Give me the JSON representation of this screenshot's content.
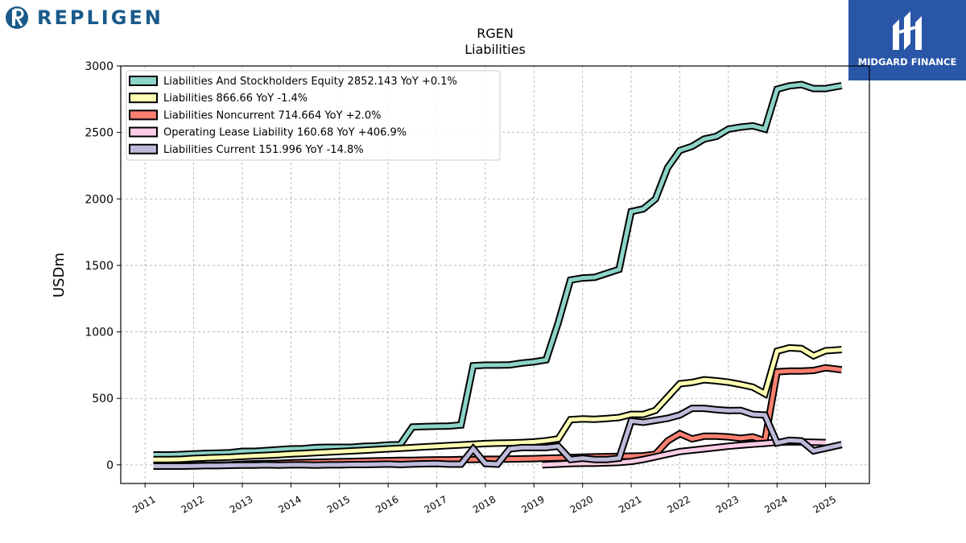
{
  "brand": {
    "left_logo_text": "REPLIGEN",
    "right_logo_text": "MIDGARD FINANCE"
  },
  "colors": {
    "equity": "#8dd3c7",
    "liabilities": "#ffffb3",
    "noncurrent": "#fb8072",
    "lease": "#fccde5",
    "current": "#bebada",
    "right_logo_bg": "#2a56a8",
    "left_logo": "#1a5a8a"
  },
  "chart_data": {
    "type": "line",
    "title": "RGEN",
    "subtitle": "Liabilities",
    "ylabel": "USDm",
    "xlabel": "",
    "xlim": [
      2010.5,
      2025.9
    ],
    "ylim": [
      -140,
      3000
    ],
    "yticks": [
      0,
      500,
      1000,
      1500,
      2000,
      2500,
      3000
    ],
    "xticks": [
      2011,
      2012,
      2013,
      2014,
      2015,
      2016,
      2017,
      2018,
      2019,
      2020,
      2021,
      2022,
      2023,
      2024,
      2025
    ],
    "grid": true,
    "legend_position": "top-left",
    "series": [
      {
        "name": "Liabilities And Stockholders Equity",
        "legend": "Liabilities And Stockholders Equity  2852.143 YoY +0.1%",
        "color": "#8dd3c7",
        "points": [
          [
            2011.17,
            75
          ],
          [
            2011.5,
            75
          ],
          [
            2011.75,
            78
          ],
          [
            2012.0,
            82
          ],
          [
            2012.25,
            86
          ],
          [
            2012.5,
            88
          ],
          [
            2012.75,
            92
          ],
          [
            2013.0,
            102
          ],
          [
            2013.25,
            102
          ],
          [
            2013.5,
            108
          ],
          [
            2013.75,
            114
          ],
          [
            2014.0,
            120
          ],
          [
            2014.25,
            122
          ],
          [
            2014.5,
            130
          ],
          [
            2014.75,
            132
          ],
          [
            2015.0,
            132
          ],
          [
            2015.25,
            132
          ],
          [
            2015.5,
            140
          ],
          [
            2015.75,
            142
          ],
          [
            2016.0,
            150
          ],
          [
            2016.25,
            152
          ],
          [
            2016.5,
            285
          ],
          [
            2016.75,
            288
          ],
          [
            2017.0,
            290
          ],
          [
            2017.25,
            292
          ],
          [
            2017.5,
            300
          ],
          [
            2017.75,
            745
          ],
          [
            2018.0,
            750
          ],
          [
            2018.25,
            750
          ],
          [
            2018.5,
            752
          ],
          [
            2018.75,
            765
          ],
          [
            2019.0,
            775
          ],
          [
            2019.25,
            790
          ],
          [
            2019.5,
            1070
          ],
          [
            2019.75,
            1390
          ],
          [
            2020.0,
            1405
          ],
          [
            2020.25,
            1410
          ],
          [
            2020.5,
            1440
          ],
          [
            2020.75,
            1470
          ],
          [
            2021.0,
            1905
          ],
          [
            2021.25,
            1925
          ],
          [
            2021.5,
            2000
          ],
          [
            2021.75,
            2235
          ],
          [
            2022.0,
            2365
          ],
          [
            2022.25,
            2395
          ],
          [
            2022.5,
            2450
          ],
          [
            2022.75,
            2470
          ],
          [
            2023.0,
            2525
          ],
          [
            2023.25,
            2540
          ],
          [
            2023.5,
            2550
          ],
          [
            2023.75,
            2525
          ],
          [
            2024.0,
            2825
          ],
          [
            2024.25,
            2850
          ],
          [
            2024.5,
            2860
          ],
          [
            2024.75,
            2830
          ],
          [
            2025.0,
            2830
          ],
          [
            2025.33,
            2852
          ]
        ]
      },
      {
        "name": "Liabilities",
        "legend": "Liabilities  866.66 YoY -1.4%",
        "color": "#ffffb3",
        "points": [
          [
            2011.17,
            40
          ],
          [
            2011.5,
            40
          ],
          [
            2011.75,
            42
          ],
          [
            2012.0,
            48
          ],
          [
            2012.25,
            52
          ],
          [
            2012.5,
            55
          ],
          [
            2012.75,
            58
          ],
          [
            2013.0,
            63
          ],
          [
            2013.25,
            68
          ],
          [
            2013.5,
            72
          ],
          [
            2013.75,
            76
          ],
          [
            2014.0,
            82
          ],
          [
            2014.25,
            86
          ],
          [
            2014.5,
            92
          ],
          [
            2014.75,
            96
          ],
          [
            2015.0,
            100
          ],
          [
            2015.25,
            105
          ],
          [
            2015.5,
            110
          ],
          [
            2015.75,
            115
          ],
          [
            2016.0,
            120
          ],
          [
            2016.25,
            125
          ],
          [
            2016.5,
            130
          ],
          [
            2016.75,
            135
          ],
          [
            2017.0,
            140
          ],
          [
            2017.25,
            145
          ],
          [
            2017.5,
            150
          ],
          [
            2017.75,
            155
          ],
          [
            2018.0,
            160
          ],
          [
            2018.25,
            163
          ],
          [
            2018.5,
            165
          ],
          [
            2018.75,
            168
          ],
          [
            2019.0,
            172
          ],
          [
            2019.25,
            182
          ],
          [
            2019.5,
            195
          ],
          [
            2019.75,
            340
          ],
          [
            2020.0,
            345
          ],
          [
            2020.25,
            342
          ],
          [
            2020.5,
            348
          ],
          [
            2020.75,
            356
          ],
          [
            2021.0,
            380
          ],
          [
            2021.25,
            380
          ],
          [
            2021.5,
            410
          ],
          [
            2021.75,
            510
          ],
          [
            2022.0,
            610
          ],
          [
            2022.25,
            620
          ],
          [
            2022.5,
            640
          ],
          [
            2022.75,
            632
          ],
          [
            2023.0,
            622
          ],
          [
            2023.25,
            605
          ],
          [
            2023.5,
            585
          ],
          [
            2023.75,
            535
          ],
          [
            2024.0,
            855
          ],
          [
            2024.25,
            880
          ],
          [
            2024.5,
            875
          ],
          [
            2024.75,
            820
          ],
          [
            2025.0,
            858
          ],
          [
            2025.33,
            866.66
          ]
        ]
      },
      {
        "name": "Liabilities Noncurrent",
        "legend": "Liabilities Noncurrent  714.664 YoY +2.0%",
        "color": "#fb8072",
        "points": [
          [
            2011.17,
            -8
          ],
          [
            2011.5,
            -8
          ],
          [
            2011.75,
            -8
          ],
          [
            2012.0,
            -6
          ],
          [
            2012.25,
            -4
          ],
          [
            2012.5,
            -2
          ],
          [
            2012.75,
            0
          ],
          [
            2013.0,
            5
          ],
          [
            2013.25,
            8
          ],
          [
            2013.5,
            10
          ],
          [
            2013.75,
            12
          ],
          [
            2014.0,
            16
          ],
          [
            2014.25,
            18
          ],
          [
            2014.5,
            20
          ],
          [
            2014.75,
            22
          ],
          [
            2015.0,
            24
          ],
          [
            2015.25,
            26
          ],
          [
            2015.5,
            28
          ],
          [
            2015.75,
            30
          ],
          [
            2016.0,
            32
          ],
          [
            2016.25,
            34
          ],
          [
            2016.5,
            34
          ],
          [
            2016.75,
            36
          ],
          [
            2017.0,
            38
          ],
          [
            2017.25,
            38
          ],
          [
            2017.5,
            40
          ],
          [
            2017.75,
            40
          ],
          [
            2018.0,
            42
          ],
          [
            2018.25,
            42
          ],
          [
            2018.5,
            44
          ],
          [
            2018.75,
            45
          ],
          [
            2019.0,
            47
          ],
          [
            2019.25,
            50
          ],
          [
            2019.5,
            52
          ],
          [
            2019.75,
            55
          ],
          [
            2020.0,
            58
          ],
          [
            2020.25,
            60
          ],
          [
            2020.5,
            62
          ],
          [
            2020.75,
            64
          ],
          [
            2021.0,
            66
          ],
          [
            2021.25,
            68
          ],
          [
            2021.5,
            80
          ],
          [
            2021.75,
            180
          ],
          [
            2022.0,
            235
          ],
          [
            2022.25,
            195
          ],
          [
            2022.5,
            215
          ],
          [
            2022.75,
            215
          ],
          [
            2023.0,
            210
          ],
          [
            2023.25,
            200
          ],
          [
            2023.5,
            210
          ],
          [
            2023.75,
            180
          ],
          [
            2024.0,
            700
          ],
          [
            2024.25,
            705
          ],
          [
            2024.5,
            705
          ],
          [
            2024.75,
            710
          ],
          [
            2025.0,
            730
          ],
          [
            2025.33,
            714.664
          ]
        ]
      },
      {
        "name": "Operating Lease Liability",
        "legend": "Operating Lease Liability  160.68 YoY +406.9%",
        "color": "#fccde5",
        "points": [
          [
            2019.17,
            0
          ],
          [
            2019.5,
            5
          ],
          [
            2019.75,
            10
          ],
          [
            2020.0,
            12
          ],
          [
            2020.25,
            12
          ],
          [
            2020.5,
            15
          ],
          [
            2020.75,
            18
          ],
          [
            2021.0,
            25
          ],
          [
            2021.25,
            40
          ],
          [
            2021.5,
            60
          ],
          [
            2021.75,
            80
          ],
          [
            2022.0,
            100
          ],
          [
            2022.25,
            110
          ],
          [
            2022.5,
            120
          ],
          [
            2022.75,
            130
          ],
          [
            2023.0,
            140
          ],
          [
            2023.25,
            148
          ],
          [
            2023.5,
            155
          ],
          [
            2023.75,
            162
          ],
          [
            2024.0,
            170
          ],
          [
            2024.25,
            172
          ],
          [
            2024.5,
            172
          ],
          [
            2024.75,
            170
          ],
          [
            2025.0,
            168
          ]
        ]
      },
      {
        "name": "Liabilities Current",
        "legend": "Liabilities Current  151.996 YoY -14.8%",
        "color": "#bebada",
        "points": [
          [
            2011.17,
            -10
          ],
          [
            2011.5,
            -10
          ],
          [
            2011.75,
            -10
          ],
          [
            2012.0,
            -8
          ],
          [
            2012.25,
            -6
          ],
          [
            2012.5,
            -6
          ],
          [
            2012.75,
            -4
          ],
          [
            2013.0,
            -2
          ],
          [
            2013.25,
            -2
          ],
          [
            2013.5,
            0
          ],
          [
            2013.75,
            -2
          ],
          [
            2014.0,
            0
          ],
          [
            2014.25,
            0
          ],
          [
            2014.5,
            -2
          ],
          [
            2014.75,
            0
          ],
          [
            2015.0,
            0
          ],
          [
            2015.25,
            2
          ],
          [
            2015.5,
            2
          ],
          [
            2015.75,
            4
          ],
          [
            2016.0,
            6
          ],
          [
            2016.25,
            2
          ],
          [
            2016.5,
            6
          ],
          [
            2016.75,
            8
          ],
          [
            2017.0,
            10
          ],
          [
            2017.25,
            5
          ],
          [
            2017.5,
            5
          ],
          [
            2017.75,
            120
          ],
          [
            2018.0,
            10
          ],
          [
            2018.25,
            5
          ],
          [
            2018.5,
            120
          ],
          [
            2018.75,
            130
          ],
          [
            2019.0,
            130
          ],
          [
            2019.25,
            130
          ],
          [
            2019.5,
            140
          ],
          [
            2019.75,
            40
          ],
          [
            2020.0,
            50
          ],
          [
            2020.25,
            40
          ],
          [
            2020.5,
            40
          ],
          [
            2020.75,
            50
          ],
          [
            2021.0,
            330
          ],
          [
            2021.25,
            320
          ],
          [
            2021.5,
            335
          ],
          [
            2021.75,
            350
          ],
          [
            2022.0,
            375
          ],
          [
            2022.25,
            425
          ],
          [
            2022.5,
            425
          ],
          [
            2022.75,
            415
          ],
          [
            2023.0,
            408
          ],
          [
            2023.25,
            410
          ],
          [
            2023.5,
            380
          ],
          [
            2023.75,
            375
          ],
          [
            2024.0,
            165
          ],
          [
            2024.25,
            185
          ],
          [
            2024.5,
            180
          ],
          [
            2024.75,
            105
          ],
          [
            2025.0,
            125
          ],
          [
            2025.33,
            151.996
          ]
        ]
      }
    ]
  }
}
